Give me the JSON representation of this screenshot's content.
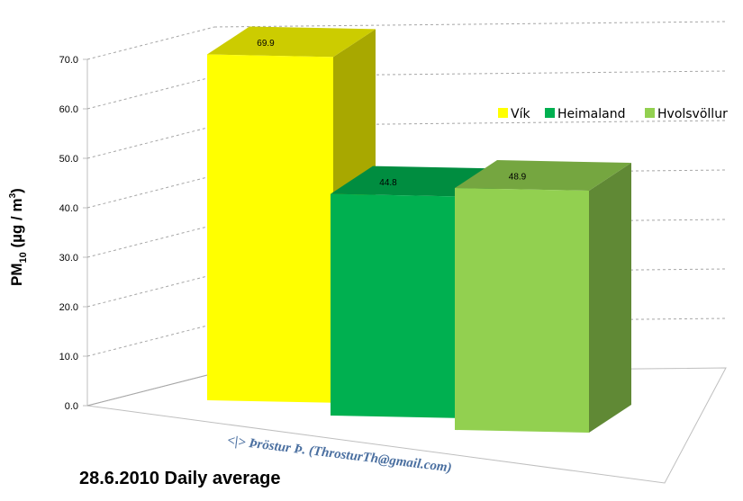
{
  "chart_data": {
    "type": "bar",
    "title": "",
    "categories": [
      "Vík",
      "Heimaland",
      "Hvolsvöllur"
    ],
    "values": [
      69.9,
      44.8,
      48.9
    ],
    "data_labels": [
      "69.9",
      "44.8",
      "48.9"
    ],
    "ylim": [
      0,
      70
    ],
    "yticks": [
      "0.0",
      "10.0",
      "20.0",
      "30.0",
      "40.0",
      "50.0",
      "60.0",
      "70.0"
    ],
    "ylabel": {
      "main": "PM",
      "sub": "10",
      "rest": " (µg / m",
      "sup": "3",
      "close": ")"
    },
    "legend": {
      "position": "right",
      "entries": [
        "Vík",
        "Heimaland",
        "Hvolsvöllur"
      ]
    },
    "grid": true,
    "colors": {
      "Vík": "#ffff00",
      "Heimaland": "#00b050",
      "Hvolsvöllur": "#92d050"
    }
  },
  "credit": "<|> Þröstur Þ. (ThrosturTh@gmail.com)",
  "caption": "28.6.2010 Daily average"
}
